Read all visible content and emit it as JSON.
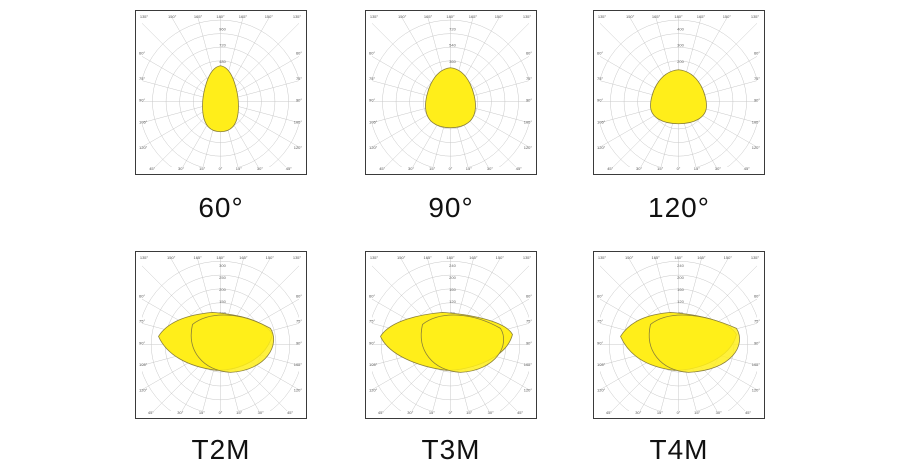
{
  "colors": {
    "fill": "#ffee1a",
    "fill_stroke": "#8a7f3a",
    "grid": "#c8c8c8",
    "frame": "#3a3a3a",
    "caption": "#111111"
  },
  "panels": [
    {
      "caption": "60°",
      "angle_labels": [
        "135°",
        "150°",
        "165°",
        "180°",
        "165°",
        "150°",
        "135°",
        "120°",
        "105°",
        "90°",
        "75°",
        "60°",
        "45°",
        "30°",
        "15°",
        "0°",
        "15°",
        "30°",
        "45°",
        "60°",
        "75°",
        "90°",
        "105°",
        "120°"
      ],
      "radial_labels": [
        "960",
        "720",
        "480",
        "240"
      ],
      "distribution": "narrow"
    },
    {
      "caption": "90°",
      "angle_labels": [
        "135°",
        "150°",
        "165°",
        "180°",
        "165°",
        "150°",
        "135°",
        "120°",
        "105°",
        "90°",
        "75°",
        "60°",
        "45°",
        "30°",
        "15°",
        "0°",
        "15°",
        "30°",
        "45°",
        "60°",
        "75°",
        "90°",
        "105°",
        "120°"
      ],
      "radial_labels": [
        "720",
        "540",
        "360",
        "180"
      ],
      "distribution": "medium"
    },
    {
      "caption": "120°",
      "angle_labels": [
        "135°",
        "150°",
        "165°",
        "180°",
        "165°",
        "150°",
        "135°",
        "120°",
        "105°",
        "90°",
        "75°",
        "60°",
        "45°",
        "30°",
        "15°",
        "0°",
        "15°",
        "30°",
        "45°",
        "60°",
        "75°",
        "90°",
        "105°",
        "120°"
      ],
      "radial_labels": [
        "400",
        "300",
        "200",
        "100"
      ],
      "distribution": "wide"
    },
    {
      "caption": "T2M",
      "angle_labels": [
        "135°",
        "150°",
        "165°",
        "180°",
        "165°",
        "150°",
        "135°",
        "120°",
        "105°",
        "90°",
        "75°",
        "60°",
        "45°",
        "30°",
        "15°",
        "0°",
        "15°",
        "30°",
        "45°",
        "60°",
        "75°",
        "90°",
        "105°",
        "120°"
      ],
      "radial_labels": [
        "300",
        "250",
        "200",
        "150",
        "100",
        "50"
      ],
      "distribution": "type2"
    },
    {
      "caption": "T3M",
      "angle_labels": [
        "135°",
        "150°",
        "165°",
        "180°",
        "165°",
        "150°",
        "135°",
        "120°",
        "105°",
        "90°",
        "75°",
        "60°",
        "45°",
        "30°",
        "15°",
        "0°",
        "15°",
        "30°",
        "45°",
        "60°",
        "75°",
        "90°",
        "105°",
        "120°"
      ],
      "radial_labels": [
        "240",
        "200",
        "160",
        "120",
        "80",
        "40"
      ],
      "distribution": "type3"
    },
    {
      "caption": "T4M",
      "angle_labels": [
        "135°",
        "150°",
        "165°",
        "180°",
        "165°",
        "150°",
        "135°",
        "120°",
        "105°",
        "90°",
        "75°",
        "60°",
        "45°",
        "30°",
        "15°",
        "0°",
        "15°",
        "30°",
        "45°",
        "60°",
        "75°",
        "90°",
        "105°",
        "120°"
      ],
      "radial_labels": [
        "240",
        "200",
        "160",
        "120",
        "80",
        "40"
      ],
      "distribution": "type4"
    }
  ]
}
